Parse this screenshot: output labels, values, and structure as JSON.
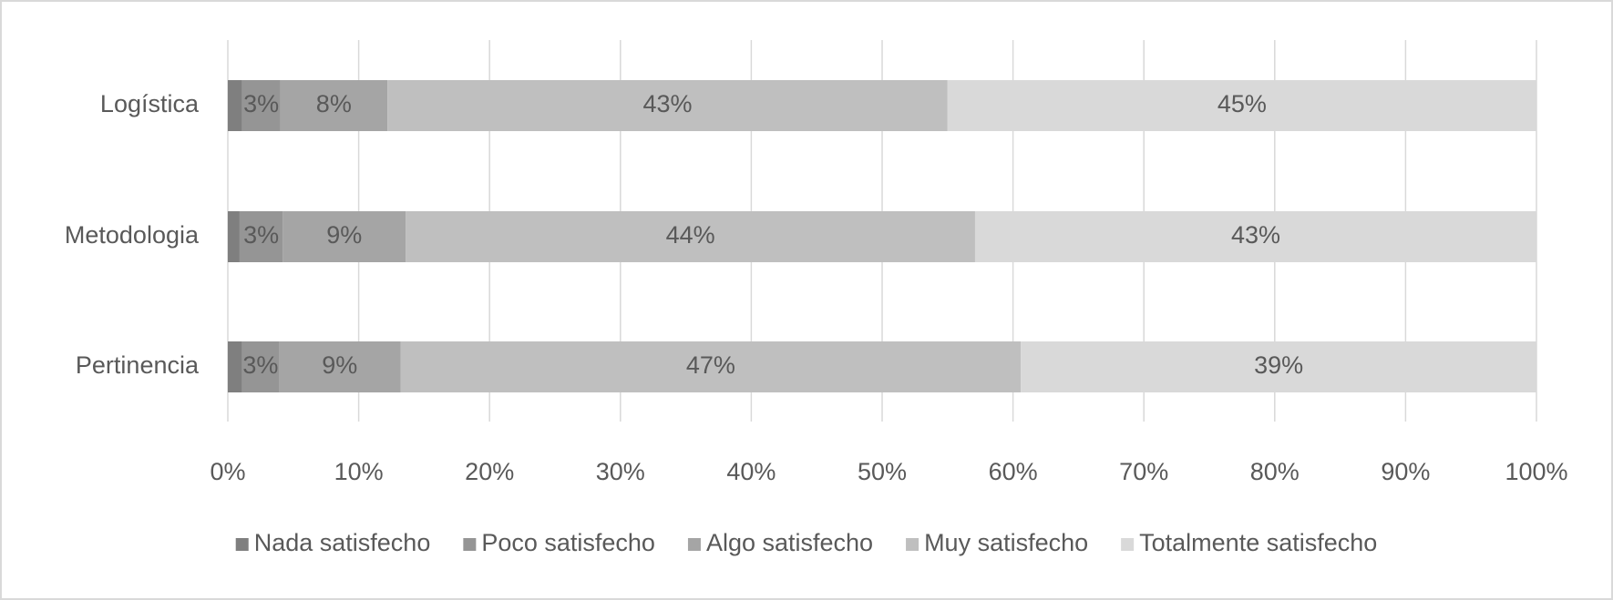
{
  "chart_data": {
    "type": "stacked-barh",
    "categories": [
      "Logística",
      "Metodologia",
      "Pertinencia"
    ],
    "series": [
      {
        "name": "Nada satisfecho",
        "color": "#7f7f7f",
        "values": [
          1.1,
          0.9,
          1.1
        ]
      },
      {
        "name": "Poco satisfecho",
        "color": "#959595",
        "values": [
          2.9,
          3.3,
          2.8
        ],
        "value_labels": [
          "3%",
          "3%",
          "3%"
        ]
      },
      {
        "name": "Algo satisfecho",
        "color": "#a5a5a5",
        "values": [
          8.2,
          9.4,
          9.3
        ],
        "value_labels": [
          "8%",
          "9%",
          "9%"
        ]
      },
      {
        "name": "Muy satisfecho",
        "color": "#bfbfbf",
        "values": [
          42.8,
          43.5,
          47.4
        ],
        "value_labels": [
          "43%",
          "44%",
          "47%"
        ]
      },
      {
        "name": "Totalmente satisfecho",
        "color": "#d9d9d9",
        "values": [
          45.0,
          42.9,
          39.4
        ],
        "value_labels": [
          "45%",
          "43%",
          "39%"
        ]
      }
    ],
    "xlim": [
      0,
      100
    ],
    "xticks": [
      {
        "value": 0,
        "label": "0%"
      },
      {
        "value": 10,
        "label": "10%"
      },
      {
        "value": 20,
        "label": "20%"
      },
      {
        "value": 30,
        "label": "30%"
      },
      {
        "value": 40,
        "label": "40%"
      },
      {
        "value": 50,
        "label": "50%"
      },
      {
        "value": 60,
        "label": "60%"
      },
      {
        "value": 70,
        "label": "70%"
      },
      {
        "value": 80,
        "label": "80%"
      },
      {
        "value": 90,
        "label": "90%"
      },
      {
        "value": 100,
        "label": "100%"
      }
    ],
    "grid": true,
    "legend": "bottom"
  }
}
